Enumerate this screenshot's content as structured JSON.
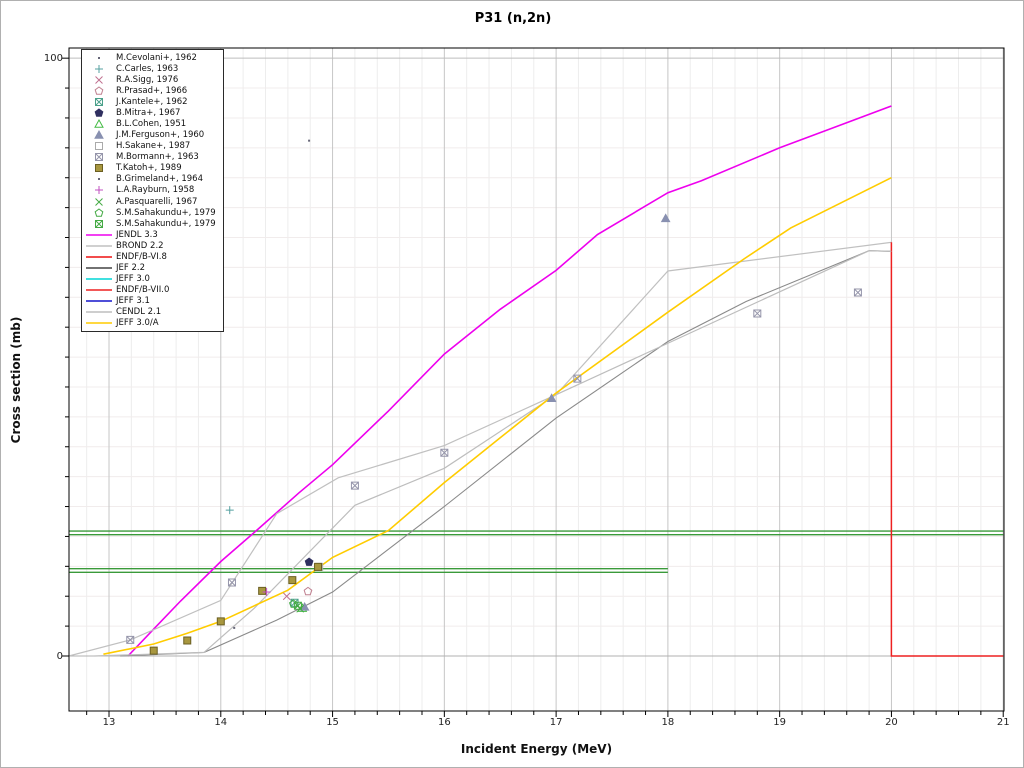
{
  "title": "P31 (n,2n)",
  "axes": {
    "x_label": "Incident Energy (MeV)",
    "y_label": "Cross section (mb)",
    "x_ticks": [
      13,
      14,
      15,
      16,
      17,
      18,
      19,
      20,
      21
    ],
    "x_minor_step": 0.2,
    "y_minor_step": 5,
    "y_labeled_ticks": [
      {
        "value": 100,
        "label": "100"
      },
      {
        "value": 0,
        "label": "0"
      }
    ],
    "x_range": [
      12.642,
      21.007
    ],
    "y_range": [
      -9.2,
      101.7
    ],
    "grid": "on"
  },
  "chart_data": {
    "type": "line",
    "xlabel": "Incident Energy (MeV)",
    "ylabel": "Cross section (mb)",
    "title": "P31 (n,2n)",
    "legend_position": "upper-left",
    "experiments": [
      {
        "label": "M.Cevolani+, 1962",
        "marker": "dot",
        "color": "#666677",
        "points": [
          [
            14.79,
            86.2
          ]
        ]
      },
      {
        "label": "C.Carles, 1963",
        "marker": "plus",
        "color": "#55a0a0",
        "points": [
          [
            14.08,
            24.4
          ]
        ]
      },
      {
        "label": "R.A.Sigg, 1976",
        "marker": "x",
        "color": "#c07090",
        "points": [
          [
            14.59,
            10.0
          ]
        ]
      },
      {
        "label": "R.Prasad+, 1966",
        "marker": "pentagon-open",
        "color": "#c08090",
        "points": [
          [
            14.78,
            10.8
          ]
        ]
      },
      {
        "label": "J.Kantele+, 1962",
        "marker": "square-crossed",
        "color": "#4aa08a",
        "points": [
          [
            14.66,
            8.9
          ]
        ]
      },
      {
        "label": "B.Mitra+, 1967",
        "marker": "pentagon-filled",
        "color": "#303060",
        "points": [
          [
            14.79,
            15.7
          ]
        ]
      },
      {
        "label": "B.L.Cohen, 1951",
        "marker": "triangle-open",
        "color": "#44bb44",
        "points": [
          [
            14.73,
            8.0
          ]
        ]
      },
      {
        "label": "J.M.Ferguson+, 1960",
        "marker": "triangle-filled",
        "color": "#8890b0",
        "points": [
          [
            14.75,
            8.2
          ],
          [
            16.96,
            43.1
          ],
          [
            17.98,
            73.2
          ]
        ]
      },
      {
        "label": "H.Sakane+, 1987",
        "marker": "square-open",
        "color": "#aaaaaa",
        "points": [
          [
            14.88,
            14.9
          ]
        ]
      },
      {
        "label": "M.Bormann+, 1963",
        "marker": "square-crossed",
        "color": "#9595aa",
        "points": [
          [
            13.19,
            2.7
          ],
          [
            14.1,
            12.3
          ],
          [
            15.2,
            28.5
          ],
          [
            16.0,
            34.0
          ],
          [
            17.19,
            46.4
          ],
          [
            18.8,
            57.3
          ],
          [
            19.7,
            60.8
          ]
        ]
      },
      {
        "label": "T.Katoh+, 1989",
        "marker": "square-filled",
        "color": "#a8973f",
        "points": [
          [
            13.4,
            0.9
          ],
          [
            13.7,
            2.6
          ],
          [
            14.0,
            5.8
          ],
          [
            14.37,
            10.9
          ],
          [
            14.64,
            12.7
          ],
          [
            14.87,
            14.9
          ]
        ]
      },
      {
        "label": "B.Grimeland+, 1964",
        "marker": "dot",
        "color": "#666677",
        "points": [
          [
            14.12,
            4.7
          ]
        ]
      },
      {
        "label": "L.A.Rayburn, 1958",
        "marker": "plus",
        "color": "#c050c0",
        "points": [
          [
            14.41,
            10.7
          ]
        ]
      },
      {
        "label": "A.Pasquarelli, 1967",
        "marker": "x",
        "color": "#44aa44",
        "points": [
          [
            14.71,
            7.9
          ]
        ]
      },
      {
        "label": "S.M.Sahakundu+, 1979",
        "marker": "pentagon-open",
        "color": "#44aa44",
        "points": [
          [
            14.65,
            8.7
          ]
        ]
      },
      {
        "label": "S.M.Sahakundu+, 1979",
        "marker": "square-crossed",
        "color": "#44aa44",
        "points": [
          [
            14.69,
            8.4
          ]
        ]
      }
    ],
    "curves": [
      {
        "label": "JENDL 3.3",
        "color": "#ee00ee",
        "width": 1.6,
        "points": [
          [
            13.17,
            0
          ],
          [
            13.4,
            4.5
          ],
          [
            13.64,
            9.2
          ],
          [
            14.0,
            15.8
          ],
          [
            14.35,
            21.5
          ],
          [
            14.7,
            27.3
          ],
          [
            15.0,
            32.0
          ],
          [
            15.5,
            41.0
          ],
          [
            16.0,
            50.5
          ],
          [
            16.5,
            58.0
          ],
          [
            17.0,
            64.5
          ],
          [
            17.37,
            70.5
          ],
          [
            18.0,
            77.5
          ],
          [
            18.3,
            79.5
          ],
          [
            19.0,
            85.0
          ],
          [
            20.0,
            92.0
          ]
        ]
      },
      {
        "label": "BROND 2.2",
        "color": "#c0c0c0",
        "width": 1.2,
        "points": [
          [
            12.64,
            0
          ],
          [
            13.19,
            2.7
          ],
          [
            14.0,
            9.3
          ],
          [
            14.5,
            23.8
          ],
          [
            15.05,
            29.8
          ],
          [
            16.0,
            35.2
          ],
          [
            17.0,
            43.7
          ],
          [
            18.0,
            64.4
          ],
          [
            20.0,
            69.2
          ]
        ]
      },
      {
        "label": "ENDF/B-VI.8",
        "color": "#ee1111",
        "width": 1.2,
        "points": []
      },
      {
        "label": "JEF 2.2",
        "color": "#8a8a8a",
        "width": 1.1,
        "points": [
          [
            13.1,
            0
          ],
          [
            13.85,
            0.6
          ],
          [
            14.5,
            6.0
          ],
          [
            15.0,
            10.7
          ],
          [
            16.0,
            25.0
          ],
          [
            17.0,
            39.8
          ],
          [
            18.0,
            52.6
          ],
          [
            18.7,
            59.3
          ],
          [
            19.8,
            67.8
          ],
          [
            20.0,
            67.7
          ]
        ]
      },
      {
        "label": "JEFF 3.0",
        "color": "#00d5d5",
        "width": 1.2,
        "points": []
      },
      {
        "label": "ENDF/B-VII.0",
        "color": "#ee2020",
        "width": 1.5,
        "points": [
          [
            20.0,
            69.2
          ],
          [
            20.0,
            0
          ],
          [
            21.0,
            0
          ]
        ]
      },
      {
        "label": "JEFF 3.1",
        "color": "#1515cc",
        "width": 1.2,
        "points": []
      },
      {
        "label": "CENDL 2.1",
        "color": "#bdbdbd",
        "width": 1.2,
        "points": [
          [
            12.87,
            0
          ],
          [
            13.85,
            0.6
          ],
          [
            14.3,
            8.0
          ],
          [
            15.2,
            25.2
          ],
          [
            16.0,
            31.4
          ],
          [
            17.0,
            43.7
          ],
          [
            19.8,
            67.8
          ],
          [
            20.0,
            67.7
          ]
        ]
      },
      {
        "label": "JEFF 3.0/A",
        "color": "#ffcc00",
        "width": 1.6,
        "points": [
          [
            12.95,
            0.3
          ],
          [
            13.4,
            2.0
          ],
          [
            13.7,
            3.8
          ],
          [
            14.0,
            5.8
          ],
          [
            14.6,
            11.0
          ],
          [
            15.0,
            16.5
          ],
          [
            15.5,
            21.0
          ],
          [
            16.0,
            29.0
          ],
          [
            16.5,
            36.5
          ],
          [
            17.0,
            44.0
          ],
          [
            18.0,
            57.5
          ],
          [
            18.68,
            66.4
          ],
          [
            19.1,
            71.6
          ],
          [
            20.0,
            80.0
          ]
        ]
      }
    ],
    "bands": [
      {
        "name": "upper-green-band",
        "color": "#3a9a3a",
        "y_top": 20.9,
        "y_bottom": 20.3,
        "x_from": 12.642,
        "x_to": 21.0
      },
      {
        "name": "lower-green-band",
        "color": "#3a9a3a",
        "y_top": 14.6,
        "y_bottom": 14.0,
        "x_from": 12.642,
        "x_to": 18.0
      }
    ]
  }
}
